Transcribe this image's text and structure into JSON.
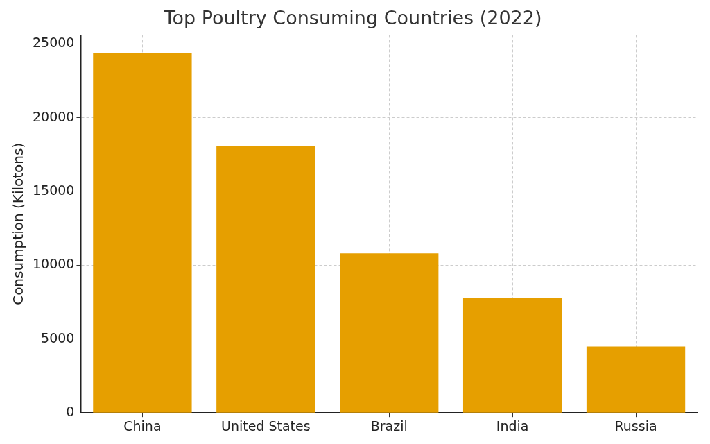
{
  "chart_data": {
    "type": "bar",
    "title": "Top Poultry Consuming Countries (2022)",
    "ylabel": "Consumption (Kilotons)",
    "categories": [
      "China",
      "United States",
      "Brazil",
      "India",
      "Russia"
    ],
    "values": [
      24400,
      18100,
      10800,
      7800,
      4500
    ],
    "color": "#e69f00",
    "ylim": [
      0,
      25600
    ],
    "yticks": [
      0,
      5000,
      10000,
      15000,
      20000,
      25000
    ],
    "grid": true
  }
}
